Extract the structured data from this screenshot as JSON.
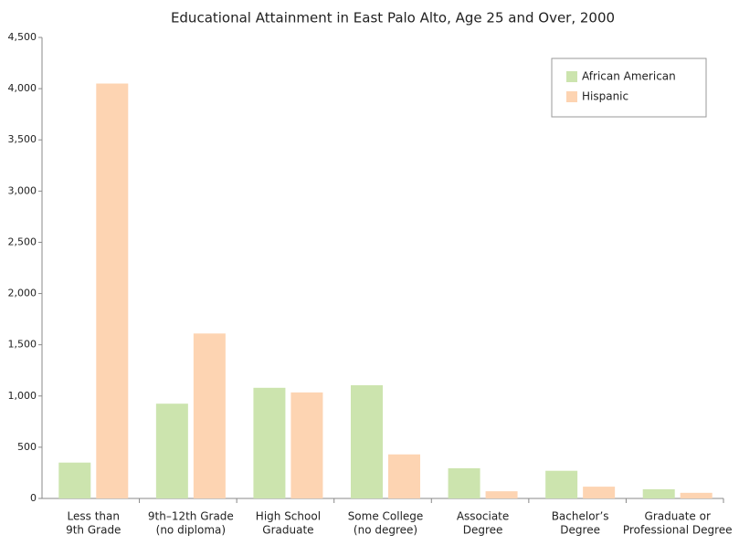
{
  "chart_data": {
    "type": "bar",
    "title": "Educational Attainment in East Palo Alto, Age 25 and Over, 2000",
    "categories": [
      [
        "Less than",
        "9th Grade"
      ],
      [
        "9th–12th Grade",
        "(no diploma)"
      ],
      [
        "High School",
        "Graduate"
      ],
      [
        "Some College",
        "(no degree)"
      ],
      [
        "Associate",
        "Degree"
      ],
      [
        "Bachelor’s",
        "Degree"
      ],
      [
        "Graduate or",
        "Professional Degree"
      ]
    ],
    "series": [
      {
        "name": "African American",
        "color": "#cce4ae",
        "values": [
          350,
          925,
          1080,
          1105,
          295,
          270,
          90
        ]
      },
      {
        "name": "Hispanic",
        "color": "#fdd4b2",
        "values": [
          4050,
          1610,
          1035,
          430,
          70,
          115,
          55
        ]
      }
    ],
    "ylim": [
      0,
      4500
    ],
    "yticks": [
      0,
      500,
      {
        "value": 1000,
        "label": "1,000"
      },
      {
        "value": 1500,
        "label": "1,500"
      },
      {
        "value": 2000,
        "label": "2,000"
      },
      {
        "value": 2500,
        "label": "2,500"
      },
      {
        "value": 3000,
        "label": "3,000"
      },
      {
        "value": 3500,
        "label": "3,500"
      },
      {
        "value": 4000,
        "label": "4,000"
      },
      {
        "value": 4500,
        "label": "4,500"
      }
    ],
    "grid": false,
    "legend": "upper right"
  }
}
